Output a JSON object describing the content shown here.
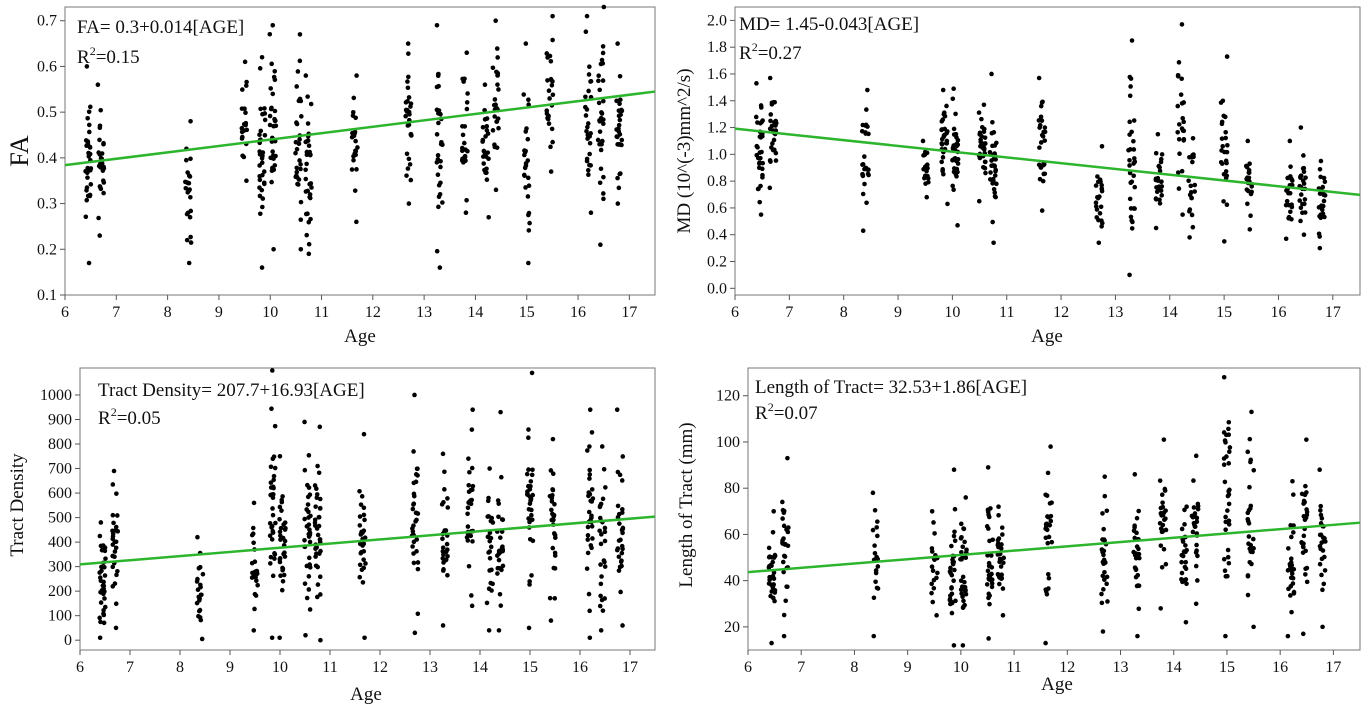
{
  "chart_data": [
    {
      "type": "scatter",
      "ylabel": "FA",
      "xlabel": "Age",
      "xlim": [
        6,
        17.5
      ],
      "ylim": [
        0.1,
        0.73
      ],
      "xticks": [
        6,
        7,
        8,
        9,
        10,
        11,
        12,
        13,
        14,
        15,
        16,
        17
      ],
      "yticks": [
        0.1,
        0.2,
        0.3,
        0.4,
        0.5,
        0.6,
        0.7
      ],
      "annotation_line1": "FA= 0.3+0.014[AGE]",
      "annotation_r2_prefix": "R",
      "annotation_r2_sup": "2",
      "annotation_r2_suffix": "=0.15",
      "fit_line": {
        "intercept": 0.3,
        "slope": 0.014,
        "color": "#2db52d"
      },
      "clusters": [
        {
          "x": 6.45,
          "min": 0.17,
          "max": 0.6,
          "n": 32
        },
        {
          "x": 6.7,
          "min": 0.23,
          "max": 0.56,
          "n": 28
        },
        {
          "x": 8.4,
          "min": 0.17,
          "max": 0.48,
          "n": 24
        },
        {
          "x": 9.5,
          "min": 0.35,
          "max": 0.61,
          "n": 20
        },
        {
          "x": 9.85,
          "min": 0.16,
          "max": 0.62,
          "n": 34
        },
        {
          "x": 10.05,
          "min": 0.2,
          "max": 0.69,
          "n": 36
        },
        {
          "x": 10.55,
          "min": 0.2,
          "max": 0.67,
          "n": 30
        },
        {
          "x": 10.75,
          "min": 0.19,
          "max": 0.58,
          "n": 34
        },
        {
          "x": 11.65,
          "min": 0.26,
          "max": 0.58,
          "n": 22
        },
        {
          "x": 12.7,
          "min": 0.3,
          "max": 0.65,
          "n": 30
        },
        {
          "x": 13.3,
          "min": 0.16,
          "max": 0.69,
          "n": 30
        },
        {
          "x": 13.8,
          "min": 0.28,
          "max": 0.63,
          "n": 24
        },
        {
          "x": 14.2,
          "min": 0.27,
          "max": 0.56,
          "n": 24
        },
        {
          "x": 14.4,
          "min": 0.33,
          "max": 0.7,
          "n": 26
        },
        {
          "x": 15.0,
          "min": 0.17,
          "max": 0.65,
          "n": 26
        },
        {
          "x": 15.45,
          "min": 0.37,
          "max": 0.71,
          "n": 26
        },
        {
          "x": 16.2,
          "min": 0.28,
          "max": 0.71,
          "n": 28
        },
        {
          "x": 16.45,
          "min": 0.21,
          "max": 0.73,
          "n": 32
        },
        {
          "x": 16.8,
          "min": 0.3,
          "max": 0.65,
          "n": 28
        }
      ]
    },
    {
      "type": "scatter",
      "ylabel": "MD (10^(-3)mm^2/s)",
      "xlabel": "Age",
      "xlim": [
        6,
        17.5
      ],
      "ylim": [
        -0.05,
        2.1
      ],
      "xticks": [
        6,
        7,
        8,
        9,
        10,
        11,
        12,
        13,
        14,
        15,
        16,
        17
      ],
      "yticks": [
        0.0,
        0.2,
        0.4,
        0.6,
        0.8,
        1.0,
        1.2,
        1.4,
        1.6,
        1.8,
        2.0
      ],
      "ytick_labels": [
        "0.0",
        "0.2",
        "0.4",
        "0.6",
        "0.8",
        "1.0",
        "1.2",
        "1.4",
        "1.6",
        "1.8",
        "2.0"
      ],
      "annotation_line1": "MD= 1.45-0.043[AGE]",
      "annotation_r2_prefix": "R",
      "annotation_r2_sup": "2",
      "annotation_r2_suffix": "=0.27",
      "fit_line": {
        "intercept": 1.45,
        "slope": -0.043,
        "color": "#2db52d"
      },
      "clusters": [
        {
          "x": 6.45,
          "min": 0.55,
          "max": 1.53,
          "n": 34
        },
        {
          "x": 6.7,
          "min": 0.75,
          "max": 1.57,
          "n": 28
        },
        {
          "x": 8.4,
          "min": 0.43,
          "max": 1.48,
          "n": 26
        },
        {
          "x": 9.5,
          "min": 0.68,
          "max": 1.1,
          "n": 22
        },
        {
          "x": 9.85,
          "min": 0.63,
          "max": 1.48,
          "n": 30
        },
        {
          "x": 10.05,
          "min": 0.47,
          "max": 1.49,
          "n": 36
        },
        {
          "x": 10.55,
          "min": 0.65,
          "max": 1.37,
          "n": 30
        },
        {
          "x": 10.75,
          "min": 0.34,
          "max": 1.6,
          "n": 34
        },
        {
          "x": 11.65,
          "min": 0.58,
          "max": 1.57,
          "n": 28
        },
        {
          "x": 12.7,
          "min": 0.34,
          "max": 1.06,
          "n": 24
        },
        {
          "x": 13.3,
          "min": 0.1,
          "max": 1.85,
          "n": 32
        },
        {
          "x": 13.8,
          "min": 0.45,
          "max": 1.15,
          "n": 26
        },
        {
          "x": 14.2,
          "min": 0.55,
          "max": 1.97,
          "n": 24
        },
        {
          "x": 14.4,
          "min": 0.38,
          "max": 1.12,
          "n": 20
        },
        {
          "x": 15.0,
          "min": 0.35,
          "max": 1.73,
          "n": 26
        },
        {
          "x": 15.45,
          "min": 0.44,
          "max": 1.1,
          "n": 22
        },
        {
          "x": 16.2,
          "min": 0.37,
          "max": 1.1,
          "n": 24
        },
        {
          "x": 16.45,
          "min": 0.4,
          "max": 1.2,
          "n": 26
        },
        {
          "x": 16.8,
          "min": 0.3,
          "max": 0.95,
          "n": 26
        }
      ]
    },
    {
      "type": "scatter",
      "ylabel": "Tract Density",
      "xlabel": "Age",
      "xlim": [
        6,
        17.5
      ],
      "ylim": [
        -40,
        1110
      ],
      "xticks": [
        6,
        7,
        8,
        9,
        10,
        11,
        12,
        13,
        14,
        15,
        16,
        17
      ],
      "yticks": [
        0,
        100,
        200,
        300,
        400,
        500,
        600,
        700,
        800,
        900,
        1000
      ],
      "annotation_line1": "Tract Density= 207.7+16.93[AGE]",
      "annotation_r2_prefix": "R",
      "annotation_r2_sup": "2",
      "annotation_r2_suffix": "=0.05",
      "fit_line": {
        "intercept": 207.7,
        "slope": 16.93,
        "color": "#2db52d"
      },
      "clusters": [
        {
          "x": 6.45,
          "min": 10,
          "max": 480,
          "n": 36
        },
        {
          "x": 6.7,
          "min": 50,
          "max": 690,
          "n": 28
        },
        {
          "x": 8.4,
          "min": 5,
          "max": 420,
          "n": 22
        },
        {
          "x": 9.5,
          "min": 40,
          "max": 560,
          "n": 22
        },
        {
          "x": 9.85,
          "min": 10,
          "max": 1100,
          "n": 34
        },
        {
          "x": 10.05,
          "min": 10,
          "max": 750,
          "n": 32
        },
        {
          "x": 10.55,
          "min": 20,
          "max": 890,
          "n": 34
        },
        {
          "x": 10.75,
          "min": 0,
          "max": 870,
          "n": 36
        },
        {
          "x": 11.65,
          "min": 10,
          "max": 840,
          "n": 30
        },
        {
          "x": 12.7,
          "min": 30,
          "max": 1000,
          "n": 32
        },
        {
          "x": 13.3,
          "min": 60,
          "max": 760,
          "n": 28
        },
        {
          "x": 13.8,
          "min": 140,
          "max": 940,
          "n": 30
        },
        {
          "x": 14.2,
          "min": 40,
          "max": 700,
          "n": 26
        },
        {
          "x": 14.4,
          "min": 40,
          "max": 930,
          "n": 28
        },
        {
          "x": 15.0,
          "min": 50,
          "max": 1090,
          "n": 32
        },
        {
          "x": 15.45,
          "min": 80,
          "max": 820,
          "n": 28
        },
        {
          "x": 16.2,
          "min": 10,
          "max": 940,
          "n": 32
        },
        {
          "x": 16.45,
          "min": 40,
          "max": 790,
          "n": 28
        },
        {
          "x": 16.8,
          "min": 60,
          "max": 940,
          "n": 30
        }
      ]
    },
    {
      "type": "scatter",
      "ylabel": "Length of Tract (mm)",
      "xlabel": "Age",
      "xlim": [
        6,
        17.5
      ],
      "ylim": [
        10,
        132
      ],
      "xticks": [
        6,
        7,
        8,
        9,
        10,
        11,
        12,
        13,
        14,
        15,
        16,
        17
      ],
      "yticks": [
        20,
        40,
        60,
        80,
        100,
        120
      ],
      "annotation_line1": "Length  of Tract= 32.53+1.86[AGE]",
      "annotation_r2_prefix": "R",
      "annotation_r2_sup": "2",
      "annotation_r2_suffix": "=0.07",
      "fit_line": {
        "intercept": 32.53,
        "slope": 1.86,
        "color": "#2db52d"
      },
      "clusters": [
        {
          "x": 6.45,
          "min": 13,
          "max": 70,
          "n": 34
        },
        {
          "x": 6.7,
          "min": 16,
          "max": 93,
          "n": 28
        },
        {
          "x": 8.4,
          "min": 16,
          "max": 78,
          "n": 20
        },
        {
          "x": 9.5,
          "min": 25,
          "max": 70,
          "n": 20
        },
        {
          "x": 9.85,
          "min": 12,
          "max": 88,
          "n": 30
        },
        {
          "x": 10.05,
          "min": 12,
          "max": 76,
          "n": 32
        },
        {
          "x": 10.55,
          "min": 15,
          "max": 89,
          "n": 32
        },
        {
          "x": 10.75,
          "min": 25,
          "max": 72,
          "n": 32
        },
        {
          "x": 11.65,
          "min": 13,
          "max": 98,
          "n": 28
        },
        {
          "x": 12.7,
          "min": 18,
          "max": 85,
          "n": 28
        },
        {
          "x": 13.3,
          "min": 16,
          "max": 86,
          "n": 30
        },
        {
          "x": 13.8,
          "min": 28,
          "max": 101,
          "n": 28
        },
        {
          "x": 14.2,
          "min": 22,
          "max": 72,
          "n": 26
        },
        {
          "x": 14.4,
          "min": 30,
          "max": 94,
          "n": 26
        },
        {
          "x": 15.0,
          "min": 16,
          "max": 128,
          "n": 34
        },
        {
          "x": 15.45,
          "min": 20,
          "max": 113,
          "n": 28
        },
        {
          "x": 16.2,
          "min": 16,
          "max": 83,
          "n": 28
        },
        {
          "x": 16.45,
          "min": 17,
          "max": 101,
          "n": 28
        },
        {
          "x": 16.8,
          "min": 20,
          "max": 88,
          "n": 26
        }
      ]
    }
  ]
}
